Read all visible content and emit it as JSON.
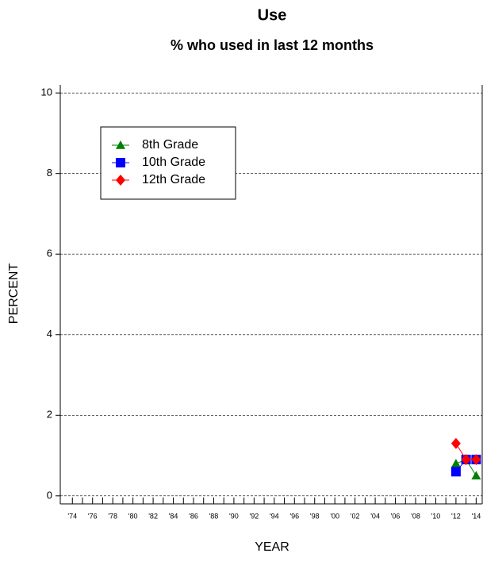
{
  "chart_data": {
    "type": "line",
    "title": "Use",
    "subtitle": "% who used in last 12 months",
    "x_label": "YEAR",
    "y_label": "PERCENT",
    "x": [
      2012,
      2013,
      2014
    ],
    "series": [
      {
        "name": "8th Grade",
        "color": "#008000",
        "marker": "triangle",
        "values": [
          0.8,
          0.9,
          0.5
        ]
      },
      {
        "name": "10th Grade",
        "color": "#0000ff",
        "marker": "square",
        "values": [
          0.6,
          0.9,
          0.9
        ]
      },
      {
        "name": "12th Grade",
        "color": "#ff0000",
        "marker": "diamond",
        "values": [
          1.3,
          0.9,
          0.9
        ]
      }
    ],
    "xlim": [
      1972.8,
      2014.6
    ],
    "ylim": [
      -0.2,
      10.2
    ],
    "yticks": [
      0,
      2,
      4,
      6,
      8,
      10
    ],
    "xticks": [
      {
        "value": 1974,
        "label": "'74"
      },
      {
        "value": 1976,
        "label": "'76"
      },
      {
        "value": 1978,
        "label": "'78"
      },
      {
        "value": 1980,
        "label": "'80"
      },
      {
        "value": 1982,
        "label": "'82"
      },
      {
        "value": 1984,
        "label": "'84"
      },
      {
        "value": 1986,
        "label": "'86"
      },
      {
        "value": 1988,
        "label": "'88"
      },
      {
        "value": 1990,
        "label": "'90"
      },
      {
        "value": 1992,
        "label": "'92"
      },
      {
        "value": 1994,
        "label": "'94"
      },
      {
        "value": 1996,
        "label": "'96"
      },
      {
        "value": 1998,
        "label": "'98"
      },
      {
        "value": 2000,
        "label": "'00"
      },
      {
        "value": 2002,
        "label": "'02"
      },
      {
        "value": 2004,
        "label": "'04"
      },
      {
        "value": 2006,
        "label": "'06"
      },
      {
        "value": 2008,
        "label": "'08"
      },
      {
        "value": 2010,
        "label": "'10"
      },
      {
        "value": 2012,
        "label": "'12"
      },
      {
        "value": 2014,
        "label": "'14"
      }
    ],
    "grid": true
  }
}
